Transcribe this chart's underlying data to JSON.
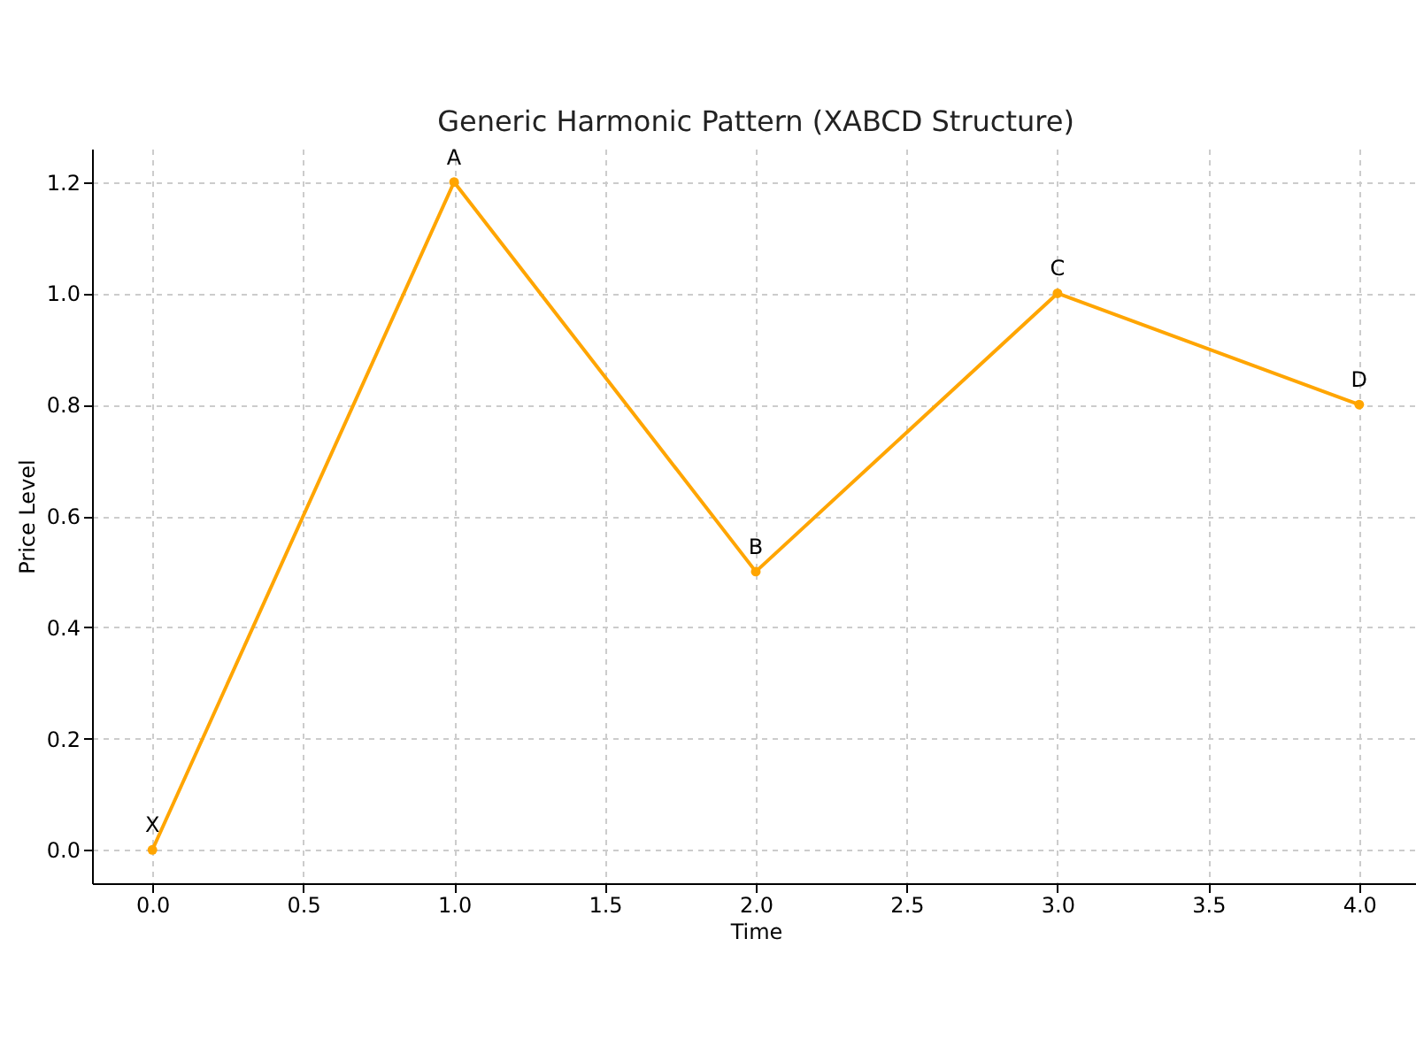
{
  "chart_data": {
    "type": "line",
    "title": "Generic Harmonic Pattern (XABCD Structure)",
    "xlabel": "Time",
    "ylabel": "Price Level",
    "x": [
      0,
      1,
      2,
      3,
      4
    ],
    "series": [
      {
        "color": "#ffa500",
        "values": [
          0,
          1.2,
          0.5,
          1.0,
          0.8
        ]
      }
    ],
    "annotations": [
      {
        "text": "X",
        "x": 0,
        "y": 0
      },
      {
        "text": "A",
        "x": 1,
        "y": 1.2
      },
      {
        "text": "B",
        "x": 2,
        "y": 0.5
      },
      {
        "text": "C",
        "x": 3,
        "y": 1.0
      },
      {
        "text": "D",
        "x": 4,
        "y": 0.8
      }
    ],
    "xlim": [
      -0.2,
      4.2
    ],
    "ylim": [
      -0.06,
      1.26
    ],
    "xticks": [
      {
        "value": 0,
        "label": "0.0"
      },
      {
        "value": 0.5,
        "label": "0.5"
      },
      {
        "value": 1,
        "label": "1.0"
      },
      {
        "value": 1.5,
        "label": "1.5"
      },
      {
        "value": 2,
        "label": "2.0"
      },
      {
        "value": 2.5,
        "label": "2.5"
      },
      {
        "value": 3,
        "label": "3.0"
      },
      {
        "value": 3.5,
        "label": "3.5"
      },
      {
        "value": 4,
        "label": "4.0"
      }
    ],
    "yticks": [
      {
        "value": 0,
        "label": "0.0"
      },
      {
        "value": 0.2,
        "label": "0.2"
      },
      {
        "value": 0.4,
        "label": "0.4"
      },
      {
        "value": 0.6,
        "label": "0.6"
      },
      {
        "value": 0.8,
        "label": "0.8"
      },
      {
        "value": 1.0,
        "label": "1.0"
      },
      {
        "value": 1.2,
        "label": "1.2"
      }
    ],
    "grid": true,
    "marker": "circle",
    "line_style": "solid"
  }
}
